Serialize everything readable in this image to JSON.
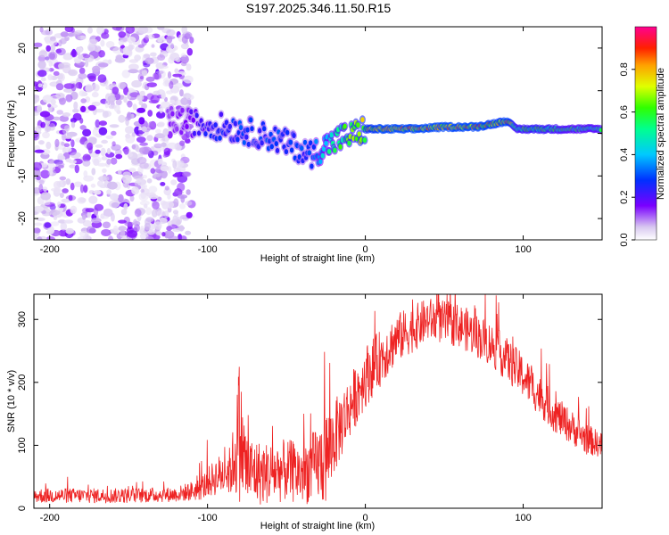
{
  "title": "S197.2025.346.11.50.R15",
  "colors": {
    "snr_line": "#ee2222",
    "axis": "#000000",
    "background": "#ffffff"
  },
  "chart_data": [
    {
      "type": "heatmap",
      "name": "spectrogram",
      "xlabel": "Height of straight line (km)",
      "ylabel": "Frequency (Hz)",
      "xlim": [
        -210,
        150
      ],
      "ylim": [
        -25,
        25
      ],
      "x_ticks": [
        -200,
        -100,
        0,
        100
      ],
      "x_tick_labels": [
        "-200",
        "-100",
        "0",
        "100"
      ],
      "y_ticks": [
        -20,
        -10,
        0,
        10,
        20
      ],
      "y_tick_labels": [
        "-20",
        "-10",
        "0",
        "10",
        "20"
      ],
      "colorbar": {
        "label": "Normalized spectral amplitude",
        "range": [
          0,
          1
        ],
        "ticks": [
          0.0,
          0.2,
          0.4,
          0.6,
          0.8
        ],
        "tick_labels": [
          "0.0",
          "0.2",
          "0.4",
          "0.6",
          "0.8"
        ]
      },
      "main_tone_track": {
        "x": [
          -120,
          -100,
          -80,
          -60,
          -45,
          -35,
          -25,
          -15,
          -5,
          0,
          10,
          30,
          50,
          70,
          85,
          90,
          95,
          110,
          130,
          150
        ],
        "freq_hz": [
          3,
          2,
          1,
          -1,
          -3,
          -5,
          -3,
          -1,
          0,
          1,
          1,
          1,
          1.5,
          1.5,
          2.5,
          3,
          1,
          1,
          1,
          1
        ],
        "amplitude": [
          0.15,
          0.25,
          0.3,
          0.3,
          0.3,
          0.3,
          0.5,
          0.6,
          0.7,
          0.75,
          0.85,
          0.85,
          0.85,
          0.85,
          0.8,
          0.85,
          0.6,
          0.65,
          0.55,
          0.55
        ]
      }
    },
    {
      "type": "line",
      "name": "snr",
      "xlabel": "Height of straight line (km)",
      "ylabel": "SNR (10 * v/v)",
      "xlim": [
        -210,
        150
      ],
      "ylim": [
        0,
        340
      ],
      "x_ticks": [
        -200,
        -100,
        0,
        100
      ],
      "x_tick_labels": [
        "-200",
        "-100",
        "0",
        "100"
      ],
      "y_ticks": [
        0,
        100,
        200,
        300
      ],
      "y_tick_labels": [
        "0",
        "100",
        "200",
        "300"
      ],
      "envelope": {
        "x": [
          -210,
          -150,
          -120,
          -105,
          -95,
          -85,
          -80,
          -75,
          -65,
          -50,
          -40,
          -30,
          -25,
          -20,
          -10,
          0,
          20,
          40,
          60,
          80,
          100,
          120,
          140,
          150
        ],
        "mean": [
          20,
          20,
          22,
          30,
          50,
          60,
          120,
          60,
          55,
          60,
          55,
          70,
          80,
          110,
          160,
          210,
          270,
          300,
          290,
          260,
          210,
          150,
          110,
          100
        ],
        "noise": [
          12,
          12,
          12,
          18,
          30,
          40,
          110,
          60,
          50,
          50,
          50,
          60,
          80,
          60,
          50,
          50,
          40,
          35,
          35,
          35,
          35,
          30,
          25,
          20
        ]
      }
    }
  ]
}
